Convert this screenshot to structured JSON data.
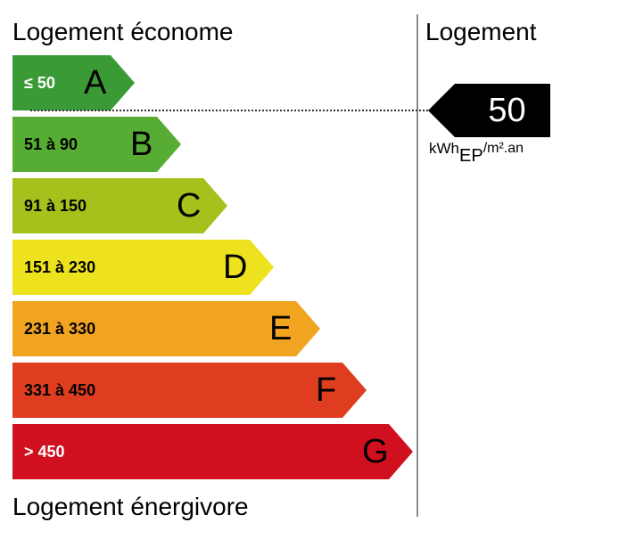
{
  "titles": {
    "top": "Logement économe",
    "bottom": "Logement énergivore",
    "right": "Logement"
  },
  "bands": [
    {
      "letter": "A",
      "range": "≤ 50",
      "color": "#3a9a36",
      "text_color": "#ffffff"
    },
    {
      "letter": "B",
      "range": "51 à 90",
      "color": "#57ad33",
      "text_color": "#000000"
    },
    {
      "letter": "C",
      "range": "91 à 150",
      "color": "#a4c21b",
      "text_color": "#000000"
    },
    {
      "letter": "D",
      "range": "151 à 230",
      "color": "#ede21d",
      "text_color": "#000000"
    },
    {
      "letter": "E",
      "range": "231 à 330",
      "color": "#f0a420",
      "text_color": "#000000"
    },
    {
      "letter": "F",
      "range": "331 à 450",
      "color": "#de3d20",
      "text_color": "#000000"
    },
    {
      "letter": "G",
      "range": "> 450",
      "color": "#d1101f",
      "text_color": "#ffffff"
    }
  ],
  "marker": {
    "value": "50",
    "color": "#000000",
    "unit_main": "kWh",
    "unit_sub": "EP",
    "unit_rest": "/m².an"
  }
}
